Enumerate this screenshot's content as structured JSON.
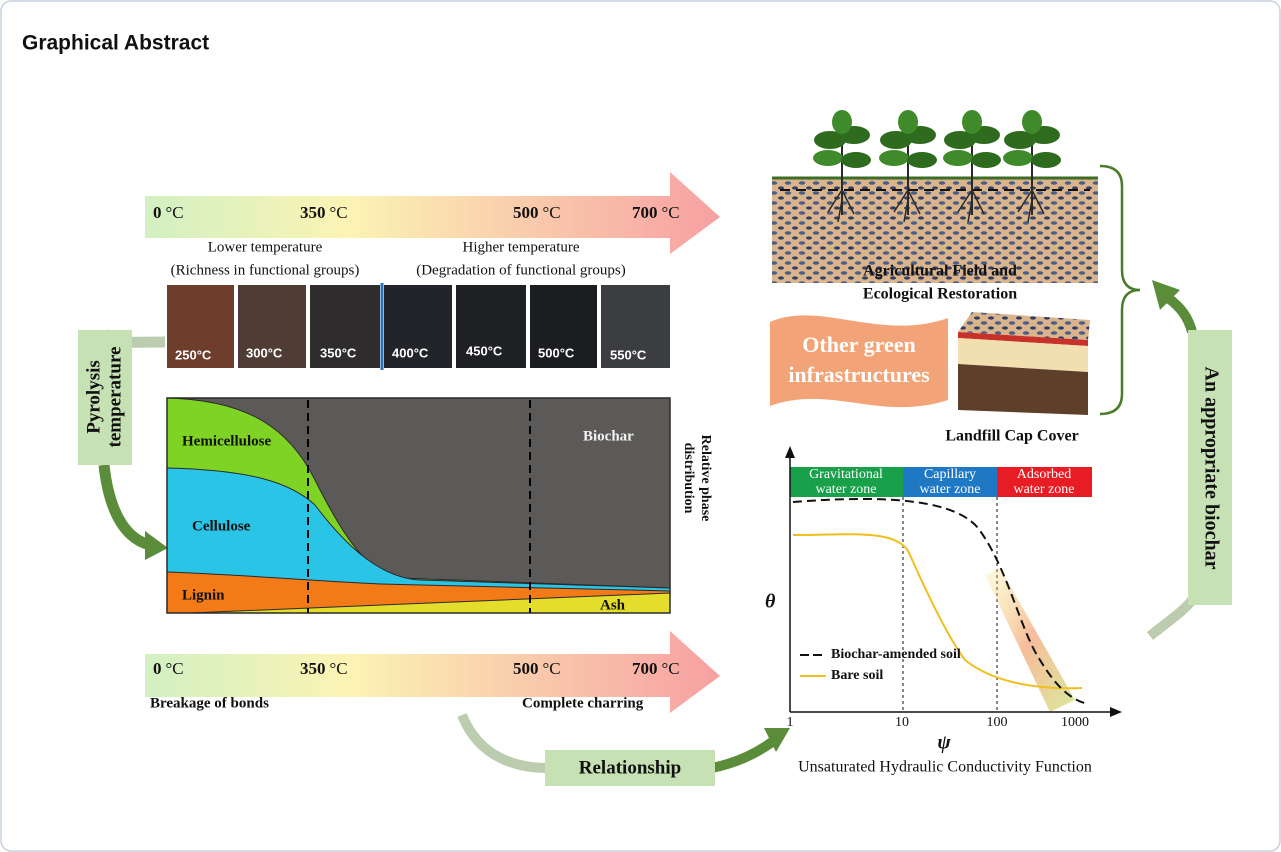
{
  "header": {
    "title": "Graphical Abstract"
  },
  "temperature_scale_top": [
    {
      "value": "0",
      "unit": "°C"
    },
    {
      "value": "350",
      "unit": "°C"
    },
    {
      "value": "500",
      "unit": "°C"
    },
    {
      "value": "700",
      "unit": "°C"
    }
  ],
  "temperature_notes": [
    {
      "label": "Lower temperature",
      "detail": "(Richness in functional groups)"
    },
    {
      "label": "Higher temperature",
      "detail": "(Degradation of functional groups)"
    }
  ],
  "photos": [
    "250°C",
    "300°C",
    "350°C",
    "400°C",
    "450°C",
    "500°C",
    "550°C"
  ],
  "side_label": [
    "Pyrolysis",
    "temperature"
  ],
  "phase_plot": {
    "components": [
      "Hemicellulose",
      "Cellulose",
      "Lignin",
      "Biochar",
      "Ash"
    ],
    "axis_label": [
      "Relative phase",
      "distribution"
    ]
  },
  "temperature_scale_bottom": [
    {
      "value": "0",
      "unit": "°C"
    },
    {
      "value": "350",
      "unit": "°C"
    },
    {
      "value": "500",
      "unit": "°C"
    },
    {
      "value": "700",
      "unit": "°C"
    }
  ],
  "bottom_notes": [
    "Breakage of bonds",
    "Complete charring"
  ],
  "relationship": "Relationship",
  "applications": {
    "field": [
      "Agricultural Field and",
      "Ecological Restoration"
    ],
    "other": [
      "Other green",
      "infrastructures"
    ],
    "landfill": "Landfill Cap Cover"
  },
  "right_label": "An appropriate biochar",
  "hydraulic_plot": {
    "zones": [
      [
        "Gravitational",
        "water zone"
      ],
      [
        "Capillary",
        "water zone"
      ],
      [
        "Adsorbed",
        "water zone"
      ]
    ],
    "y_label": "θ",
    "x_label": "ψ",
    "x_ticks": [
      "1",
      "10",
      "100",
      "1000"
    ],
    "legend": [
      "Biochar-amended soil",
      "Bare soil"
    ],
    "caption": "Unsaturated Hydraulic Conductivity Function"
  }
}
